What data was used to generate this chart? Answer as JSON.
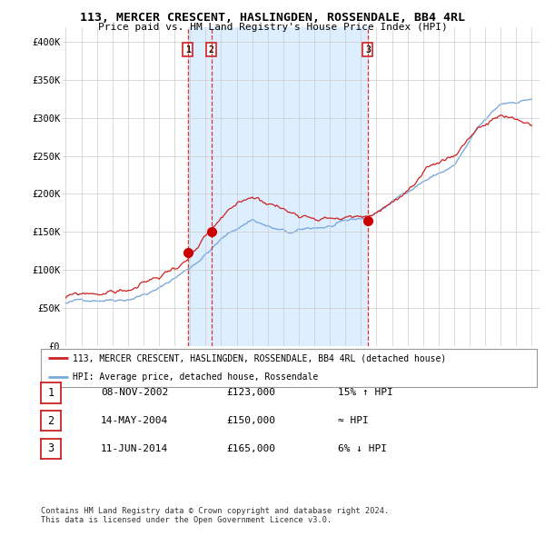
{
  "title": "113, MERCER CRESCENT, HASLINGDEN, ROSSENDALE, BB4 4RL",
  "subtitle": "Price paid vs. HM Land Registry's House Price Index (HPI)",
  "ylim": [
    0,
    420000
  ],
  "yticks": [
    0,
    50000,
    100000,
    150000,
    200000,
    250000,
    300000,
    350000,
    400000
  ],
  "ytick_labels": [
    "£0",
    "£50K",
    "£100K",
    "£150K",
    "£200K",
    "£250K",
    "£300K",
    "£350K",
    "£400K"
  ],
  "sales": [
    {
      "date_num": 2002.85,
      "price": 123000,
      "label": "1"
    },
    {
      "date_num": 2004.37,
      "price": 150000,
      "label": "2"
    },
    {
      "date_num": 2014.44,
      "price": 165000,
      "label": "3"
    }
  ],
  "vline_color": "#dd3333",
  "sale_marker_color": "#cc0000",
  "hpi_line_color": "#7aaadd",
  "price_line_color": "#cc2222",
  "shade_color": "#ddeeff",
  "legend_label_price": "113, MERCER CRESCENT, HASLINGDEN, ROSSENDALE, BB4 4RL (detached house)",
  "legend_label_hpi": "HPI: Average price, detached house, Rossendale",
  "footer": "Contains HM Land Registry data © Crown copyright and database right 2024.\nThis data is licensed under the Open Government Licence v3.0.",
  "table_rows": [
    {
      "num": "1",
      "date": "08-NOV-2002",
      "price": "£123,000",
      "relation": "15% ↑ HPI"
    },
    {
      "num": "2",
      "date": "14-MAY-2004",
      "price": "£150,000",
      "relation": "≈ HPI"
    },
    {
      "num": "3",
      "date": "11-JUN-2014",
      "price": "£165,000",
      "relation": "6% ↓ HPI"
    }
  ],
  "background_color": "#ffffff",
  "grid_color": "#cccccc"
}
